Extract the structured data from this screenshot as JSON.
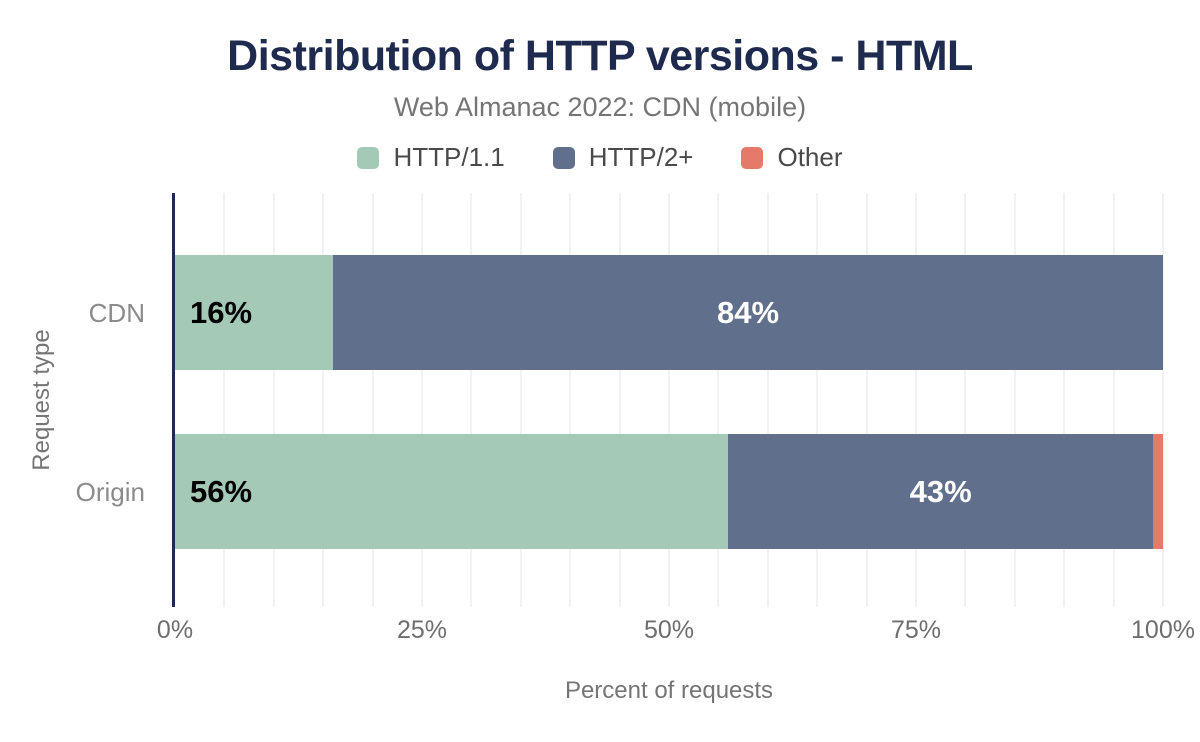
{
  "title": "Distribution of HTTP versions - HTML",
  "subtitle": "Web Almanac 2022: CDN (mobile)",
  "legend": [
    {
      "label": "HTTP/1.1",
      "color": "#a4c9b6"
    },
    {
      "label": "HTTP/2+",
      "color": "#5f6f8c"
    },
    {
      "label": "Other",
      "color": "#e5796a"
    }
  ],
  "colors": {
    "title": "#1e2b4f",
    "axis_line": "#1e2b4f",
    "gridline": "#f2f2f2",
    "muted_text": "#757575"
  },
  "chart_data": {
    "type": "bar",
    "orientation": "horizontal",
    "stacked": true,
    "title": "Distribution of HTTP versions - HTML",
    "subtitle": "Web Almanac 2022: CDN (mobile)",
    "categories": [
      "CDN",
      "Origin"
    ],
    "series": [
      {
        "name": "HTTP/1.1",
        "color": "#a4c9b6",
        "values": [
          16,
          56
        ],
        "labels": [
          "16%",
          "56%"
        ],
        "label_color": "#000000"
      },
      {
        "name": "HTTP/2+",
        "color": "#5f6f8c",
        "values": [
          84,
          43
        ],
        "labels": [
          "84%",
          "43%"
        ],
        "label_color": "#ffffff"
      },
      {
        "name": "Other",
        "color": "#e5796a",
        "values": [
          0,
          1
        ],
        "labels": [
          "",
          ""
        ],
        "label_color": "#ffffff"
      }
    ],
    "xlabel": "Percent of requests",
    "ylabel": "Request type",
    "xlim": [
      0,
      100
    ],
    "xtick_labels": [
      "0%",
      "25%",
      "50%",
      "75%",
      "100%"
    ],
    "xtick_values": [
      0,
      25,
      50,
      75,
      100
    ],
    "grid": true,
    "grid_interval": 5,
    "legend_position": "top"
  }
}
